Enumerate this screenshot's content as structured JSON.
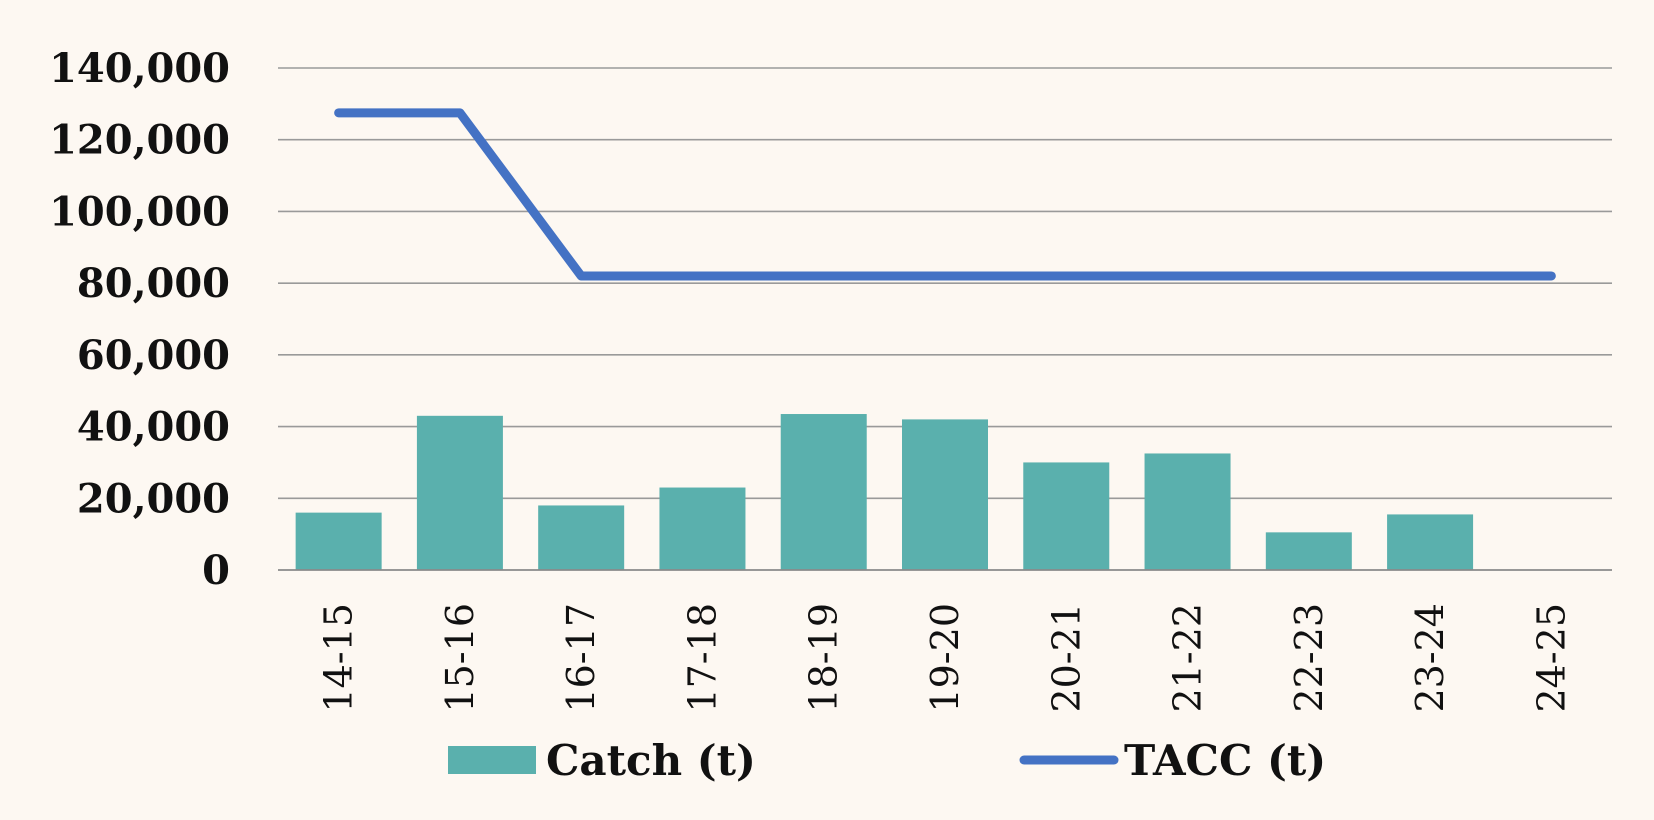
{
  "chart_data": {
    "type": "bar",
    "categories": [
      "14-15",
      "15-16",
      "16-17",
      "17-18",
      "18-19",
      "19-20",
      "20-21",
      "21-22",
      "22-23",
      "23-24",
      "24-25"
    ],
    "series": [
      {
        "name": "Catch (t)",
        "type": "bar",
        "color": "#5ab0ad",
        "values": [
          16000,
          43000,
          18000,
          23000,
          43500,
          42000,
          30000,
          32500,
          10500,
          15500,
          null
        ]
      },
      {
        "name": "TACC (t)",
        "type": "line",
        "color": "#4472c4",
        "values": [
          127500,
          127500,
          82000,
          82000,
          82000,
          82000,
          82000,
          82000,
          82000,
          82000,
          82000
        ]
      }
    ],
    "yticks": [
      "0",
      "20,000",
      "40,000",
      "60,000",
      "80,000",
      "100,000",
      "120,000",
      "140,000"
    ],
    "ylim": [
      0,
      140000
    ],
    "grid": true,
    "legend_position": "bottom",
    "title": "",
    "xlabel": "",
    "ylabel": ""
  }
}
